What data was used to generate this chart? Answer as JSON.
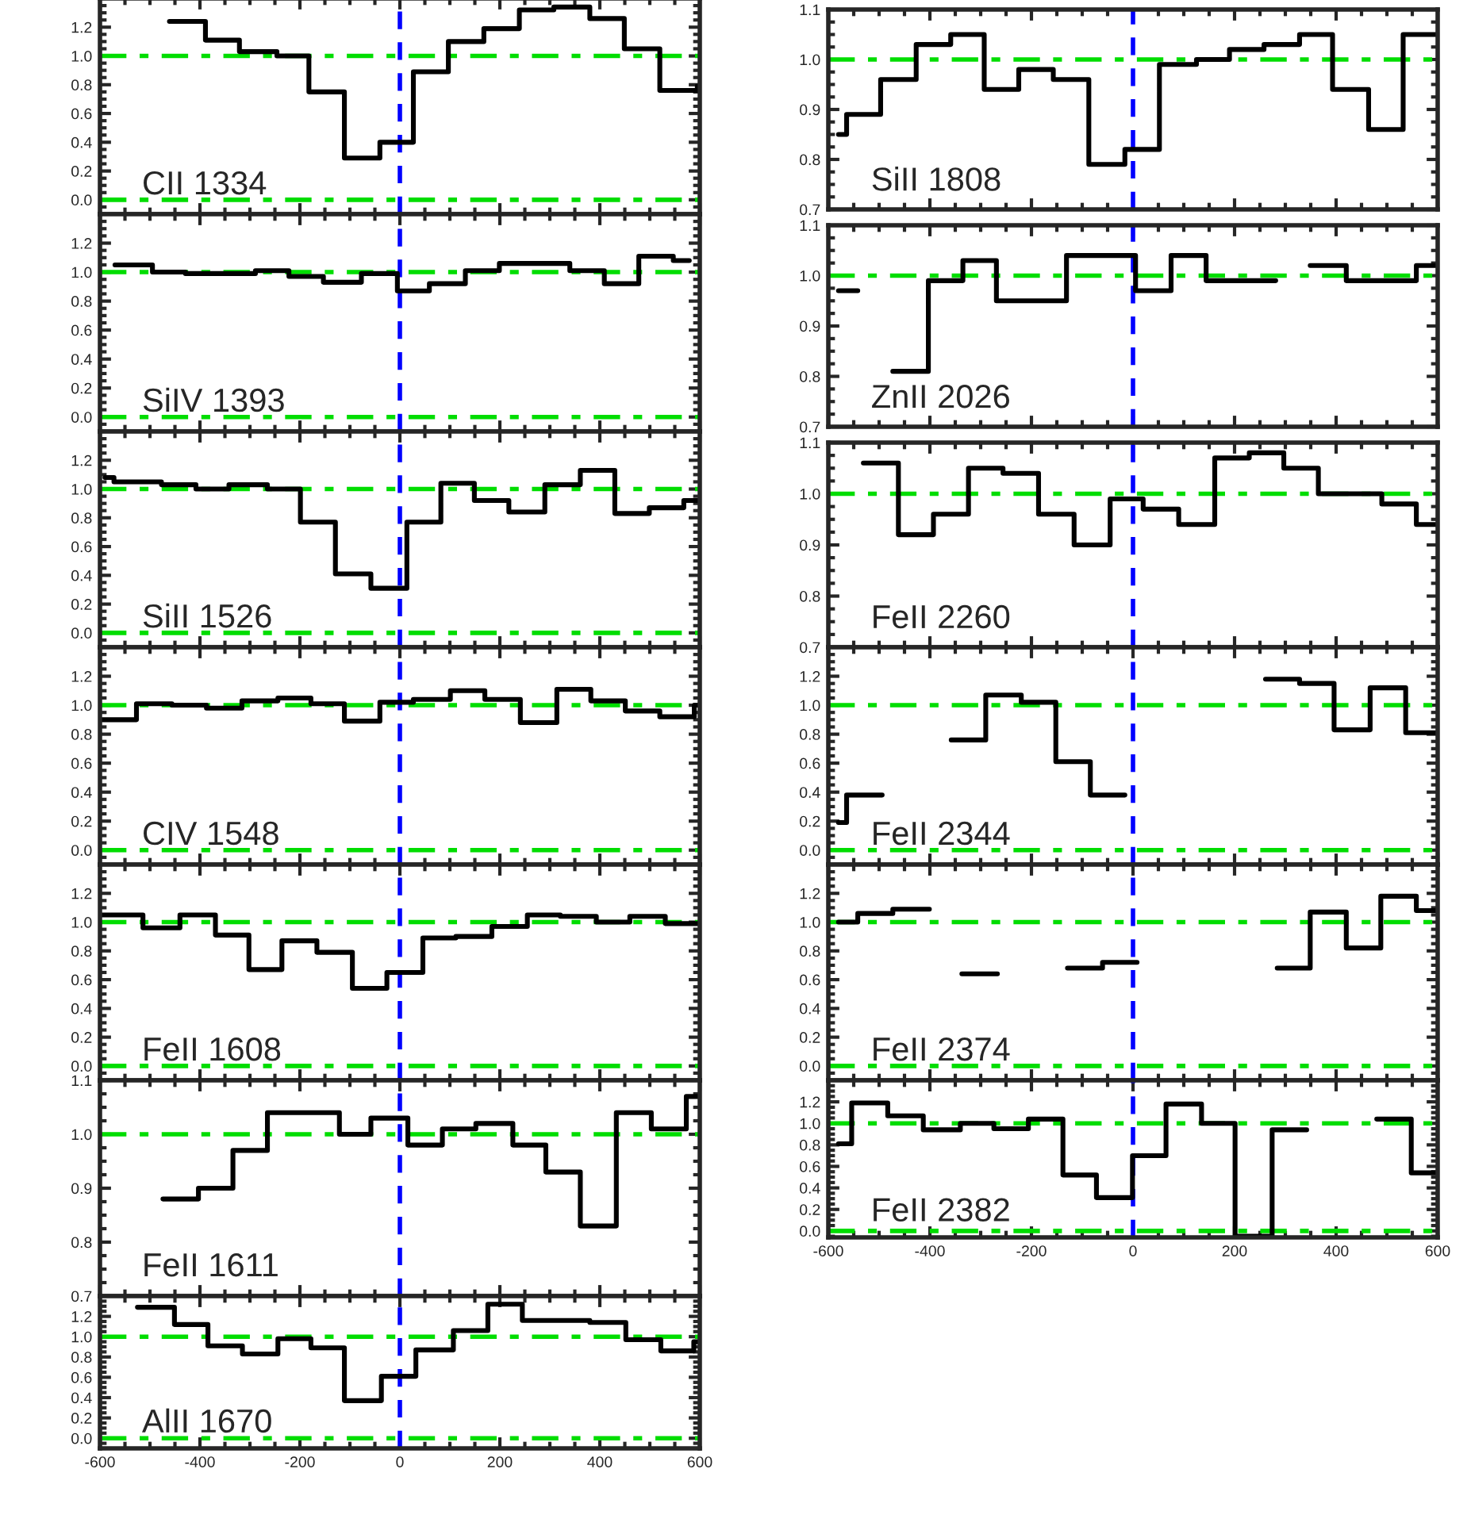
{
  "chart_data": [
    {
      "type": "step",
      "x": [
        -461,
        -389,
        -321,
        -246,
        -182,
        -111,
        -40,
        27,
        97,
        168,
        239,
        308,
        380,
        449,
        520,
        595,
        600
      ],
      "values": [
        1.24,
        1.11,
        1.03,
        1.0,
        0.75,
        0.29,
        0.4,
        0.89,
        1.1,
        1.19,
        1.32,
        1.34,
        1.26,
        1.05,
        0.76,
        0.79,
        0.79
      ],
      "color": "#000000",
      "xlim": [
        -600,
        600
      ],
      "xticks": [
        -600,
        -400,
        -200,
        0,
        200,
        400,
        600
      ],
      "ylim": [
        -0.1,
        1.4
      ],
      "yticks": [
        {
          "value": 0,
          "label": "0.0"
        },
        {
          "value": 0.2,
          "label": "0.2"
        },
        {
          "value": 0.4,
          "label": "0.4"
        },
        {
          "value": 0.6,
          "label": "0.6"
        },
        {
          "value": 0.8,
          "label": "0.8"
        },
        {
          "value": 1,
          "label": "1.0"
        },
        {
          "value": 1.2,
          "label": "1.2"
        }
      ],
      "tick_labels": "y",
      "annotations": [
        "CII 1334"
      ],
      "ref_lines": [
        {
          "axis": "y",
          "value": 0,
          "color": "#00dd00",
          "line_style": "dashdot"
        },
        {
          "axis": "y",
          "value": 1,
          "color": "#00dd00",
          "line_style": "dashdot"
        },
        {
          "axis": "x",
          "value": 0,
          "color": "#0000ff",
          "line_style": "dashed"
        }
      ]
    },
    {
      "type": "step",
      "x": [
        -570,
        -495,
        -429,
        -289,
        -222,
        -153,
        -77,
        -5,
        59,
        131,
        199,
        340,
        409,
        478,
        547,
        579
      ],
      "values": [
        1.05,
        1.0,
        0.99,
        1.01,
        0.97,
        0.93,
        0.99,
        0.87,
        0.92,
        1.01,
        1.06,
        1.01,
        0.92,
        1.11,
        1.08,
        1.08
      ],
      "color": "#000000",
      "xlim": [
        -600,
        600
      ],
      "xticks": [
        -600,
        -400,
        -200,
        0,
        200,
        400,
        600
      ],
      "ylim": [
        -0.1,
        1.4
      ],
      "yticks": [
        {
          "value": 0,
          "label": "0.0"
        },
        {
          "value": 0.2,
          "label": "0.2"
        },
        {
          "value": 0.4,
          "label": "0.4"
        },
        {
          "value": 0.6,
          "label": "0.6"
        },
        {
          "value": 0.8,
          "label": "0.8"
        },
        {
          "value": 1,
          "label": "1.0"
        },
        {
          "value": 1.2,
          "label": "1.2"
        }
      ],
      "tick_labels": "y",
      "annotations": [
        "SiIV 1393"
      ],
      "ref_lines": [
        {
          "axis": "y",
          "value": 0,
          "color": "#00dd00",
          "line_style": "dashdot"
        },
        {
          "axis": "y",
          "value": 1,
          "color": "#00dd00",
          "line_style": "dashdot"
        },
        {
          "axis": "x",
          "value": 0,
          "color": "#0000ff",
          "line_style": "dashed"
        }
      ]
    },
    {
      "type": "step",
      "x": [
        -590,
        -572,
        -477,
        -408,
        -342,
        -265,
        -199,
        -129,
        -58,
        14,
        82,
        149,
        218,
        290,
        361,
        430,
        499,
        568,
        600
      ],
      "values": [
        1.08,
        1.05,
        1.03,
        1.0,
        1.03,
        1.0,
        0.77,
        0.41,
        0.31,
        0.77,
        1.04,
        0.92,
        0.84,
        1.03,
        1.13,
        0.83,
        0.87,
        0.92,
        0.92
      ],
      "color": "#000000",
      "xlim": [
        -600,
        600
      ],
      "xticks": [
        -600,
        -400,
        -200,
        0,
        200,
        400,
        600
      ],
      "ylim": [
        -0.1,
        1.4
      ],
      "yticks": [
        {
          "value": 0,
          "label": "0.0"
        },
        {
          "value": 0.2,
          "label": "0.2"
        },
        {
          "value": 0.4,
          "label": "0.4"
        },
        {
          "value": 0.6,
          "label": "0.6"
        },
        {
          "value": 0.8,
          "label": "0.8"
        },
        {
          "value": 1,
          "label": "1.0"
        },
        {
          "value": 1.2,
          "label": "1.2"
        }
      ],
      "tick_labels": "y",
      "annotations": [
        "SiII 1526"
      ],
      "ref_lines": [
        {
          "axis": "y",
          "value": 0,
          "color": "#00dd00",
          "line_style": "dashdot"
        },
        {
          "axis": "y",
          "value": 1,
          "color": "#00dd00",
          "line_style": "dashdot"
        },
        {
          "axis": "x",
          "value": 0,
          "color": "#0000ff",
          "line_style": "dashed"
        }
      ]
    },
    {
      "type": "step",
      "x": [
        -600,
        -527,
        -456,
        -387,
        -316,
        -244,
        -178,
        -111,
        -40,
        27,
        101,
        170,
        241,
        314,
        382,
        451,
        520,
        589,
        600
      ],
      "values": [
        0.9,
        1.01,
        1.0,
        0.98,
        1.03,
        1.05,
        1.01,
        0.89,
        1.02,
        1.04,
        1.1,
        1.04,
        0.88,
        1.11,
        1.03,
        0.96,
        0.92,
        1.0,
        1.0
      ],
      "color": "#000000",
      "xlim": [
        -600,
        600
      ],
      "xticks": [
        -600,
        -400,
        -200,
        0,
        200,
        400,
        600
      ],
      "ylim": [
        -0.1,
        1.4
      ],
      "yticks": [
        {
          "value": 0,
          "label": "0.0"
        },
        {
          "value": 0.2,
          "label": "0.2"
        },
        {
          "value": 0.4,
          "label": "0.4"
        },
        {
          "value": 0.6,
          "label": "0.6"
        },
        {
          "value": 0.8,
          "label": "0.8"
        },
        {
          "value": 1,
          "label": "1.0"
        },
        {
          "value": 1.2,
          "label": "1.2"
        }
      ],
      "tick_labels": "y",
      "annotations": [
        "CIV 1548"
      ],
      "ref_lines": [
        {
          "axis": "y",
          "value": 0,
          "color": "#00dd00",
          "line_style": "dashdot"
        },
        {
          "axis": "y",
          "value": 1,
          "color": "#00dd00",
          "line_style": "dashdot"
        },
        {
          "axis": "x",
          "value": 0,
          "color": "#0000ff",
          "line_style": "dashed"
        }
      ]
    },
    {
      "type": "step",
      "x": [
        -600,
        -514,
        -440,
        -369,
        -302,
        -236,
        -166,
        -95,
        -26,
        46,
        112,
        184,
        255,
        321,
        393,
        460,
        531,
        600
      ],
      "values": [
        1.05,
        0.96,
        1.05,
        0.91,
        0.67,
        0.87,
        0.79,
        0.54,
        0.65,
        0.89,
        0.9,
        0.97,
        1.05,
        1.04,
        1.0,
        1.04,
        0.99,
        0.99
      ],
      "color": "#000000",
      "xlim": [
        -600,
        600
      ],
      "xticks": [
        -600,
        -400,
        -200,
        0,
        200,
        400,
        600
      ],
      "ylim": [
        -0.1,
        1.4
      ],
      "yticks": [
        {
          "value": 0,
          "label": "0.0"
        },
        {
          "value": 0.2,
          "label": "0.2"
        },
        {
          "value": 0.4,
          "label": "0.4"
        },
        {
          "value": 0.6,
          "label": "0.6"
        },
        {
          "value": 0.8,
          "label": "0.8"
        },
        {
          "value": 1,
          "label": "1.0"
        },
        {
          "value": 1.2,
          "label": "1.2"
        }
      ],
      "tick_labels": "y",
      "annotations": [
        "FeII 1608"
      ],
      "ref_lines": [
        {
          "axis": "y",
          "value": 0,
          "color": "#00dd00",
          "line_style": "dashdot"
        },
        {
          "axis": "y",
          "value": 1,
          "color": "#00dd00",
          "line_style": "dashdot"
        },
        {
          "axis": "x",
          "value": 0,
          "color": "#0000ff",
          "line_style": "dashed"
        }
      ]
    },
    {
      "type": "step",
      "x": [
        -474,
        -403,
        -334,
        -265,
        -196,
        -121,
        -58,
        16,
        85,
        152,
        226,
        292,
        361,
        433,
        503,
        573,
        600
      ],
      "values": [
        0.88,
        0.9,
        0.97,
        1.04,
        1.04,
        1.0,
        1.03,
        0.98,
        1.01,
        1.02,
        0.98,
        0.93,
        0.83,
        1.04,
        1.01,
        1.07,
        1.07
      ],
      "color": "#000000",
      "xlim": [
        -600,
        600
      ],
      "xticks": [
        -600,
        -400,
        -200,
        0,
        200,
        400,
        600
      ],
      "ylim": [
        0.7,
        1.1
      ],
      "yticks": [
        {
          "value": 0.7,
          "label": "0.7"
        },
        {
          "value": 0.8,
          "label": "0.8"
        },
        {
          "value": 0.9,
          "label": "0.9"
        },
        {
          "value": 1,
          "label": "1.0"
        },
        {
          "value": 1.1,
          "label": "1.1"
        }
      ],
      "tick_labels": "y",
      "annotations": [
        "FeII 1611"
      ],
      "ref_lines": [
        {
          "axis": "y",
          "value": 1,
          "color": "#00dd00",
          "line_style": "dashdot"
        },
        {
          "axis": "x",
          "value": 0,
          "color": "#0000ff",
          "line_style": "dashed"
        }
      ]
    },
    {
      "type": "step",
      "x": [
        -525,
        -451,
        -384,
        -315,
        -244,
        -178,
        -111,
        -37,
        32,
        107,
        176,
        245,
        380,
        452,
        522,
        588,
        600
      ],
      "values": [
        1.29,
        1.12,
        0.91,
        0.83,
        0.98,
        0.89,
        0.37,
        0.61,
        0.87,
        1.06,
        1.32,
        1.16,
        1.14,
        0.97,
        0.86,
        0.95,
        0.95
      ],
      "color": "#000000",
      "xlim": [
        -600,
        600
      ],
      "xticks": [
        -600,
        -400,
        -200,
        0,
        200,
        400,
        600
      ],
      "ylim": [
        -0.1,
        1.4
      ],
      "yticks": [
        {
          "value": 0,
          "label": "0.0"
        },
        {
          "value": 0.2,
          "label": "0.2"
        },
        {
          "value": 0.4,
          "label": "0.4"
        },
        {
          "value": 0.6,
          "label": "0.6"
        },
        {
          "value": 0.8,
          "label": "0.8"
        },
        {
          "value": 1,
          "label": "1.0"
        },
        {
          "value": 1.2,
          "label": "1.2"
        }
      ],
      "annotations": [
        "AlII 1670"
      ],
      "ref_lines": [
        {
          "axis": "y",
          "value": 0,
          "color": "#00dd00",
          "line_style": "dashdot"
        },
        {
          "axis": "y",
          "value": 1,
          "color": "#00dd00",
          "line_style": "dashdot"
        },
        {
          "axis": "x",
          "value": 0,
          "color": "#0000ff",
          "line_style": "dashed"
        }
      ]
    },
    {
      "type": "step",
      "x": [
        -580,
        -564,
        -497,
        -427,
        -359,
        -293,
        -225,
        -157,
        -87,
        -16,
        52,
        125,
        190,
        258,
        328,
        393,
        464,
        532,
        600
      ],
      "values": [
        0.85,
        0.89,
        0.96,
        1.03,
        1.05,
        0.94,
        0.98,
        0.96,
        0.79,
        0.82,
        0.99,
        1.0,
        1.02,
        1.03,
        1.05,
        0.94,
        0.86,
        1.05,
        1.05
      ],
      "color": "#000000",
      "xlim": [
        -600,
        600
      ],
      "xticks": [
        -600,
        -400,
        -200,
        0,
        200,
        400,
        600
      ],
      "ylim": [
        0.7,
        1.1
      ],
      "yticks": [
        {
          "value": 0.7,
          "label": "0.7"
        },
        {
          "value": 0.8,
          "label": "0.8"
        },
        {
          "value": 0.9,
          "label": "0.9"
        },
        {
          "value": 1,
          "label": "1.0"
        },
        {
          "value": 1.1,
          "label": "1.1"
        }
      ],
      "tick_labels": "y",
      "annotations": [
        "SiII 1808"
      ],
      "ref_lines": [
        {
          "axis": "y",
          "value": 1,
          "color": "#00dd00",
          "line_style": "dashdot"
        },
        {
          "axis": "x",
          "value": 0,
          "color": "#0000ff",
          "line_style": "dashed"
        }
      ]
    },
    {
      "type": "step",
      "x": [
        -580,
        -542,
        -473,
        -403,
        -335,
        -269,
        -199,
        -131,
        -63,
        5,
        75,
        144,
        214,
        281,
        349,
        420,
        488,
        558,
        600
      ],
      "values": [
        0.97,
        null,
        0.81,
        0.99,
        1.03,
        0.95,
        0.95,
        1.04,
        1.04,
        0.97,
        1.04,
        0.99,
        0.99,
        null,
        1.02,
        0.99,
        0.99,
        1.02,
        1.02
      ],
      "color": "#000000",
      "xlim": [
        -600,
        600
      ],
      "xticks": [
        -600,
        -400,
        -200,
        0,
        200,
        400,
        600
      ],
      "ylim": [
        0.7,
        1.1
      ],
      "yticks": [
        {
          "value": 0.7,
          "label": "0.7"
        },
        {
          "value": 0.8,
          "label": "0.8"
        },
        {
          "value": 0.9,
          "label": "0.9"
        },
        {
          "value": 1,
          "label": "1.0"
        },
        {
          "value": 1.1,
          "label": "1.1"
        }
      ],
      "tick_labels": "y",
      "annotations": [
        "ZnII 2026"
      ],
      "ref_lines": [
        {
          "axis": "y",
          "value": 1,
          "color": "#00dd00",
          "line_style": "dashdot"
        },
        {
          "axis": "x",
          "value": 0,
          "color": "#0000ff",
          "line_style": "dashed"
        }
      ]
    },
    {
      "type": "step",
      "x": [
        -531,
        -462,
        -393,
        -324,
        -256,
        -186,
        -116,
        -45,
        20,
        90,
        161,
        229,
        297,
        365,
        490,
        558,
        600
      ],
      "values": [
        1.06,
        0.92,
        0.96,
        1.05,
        1.04,
        0.96,
        0.9,
        0.99,
        0.97,
        0.94,
        1.07,
        1.08,
        1.05,
        1.0,
        0.98,
        0.94,
        0.94
      ],
      "color": "#000000",
      "xlim": [
        -600,
        600
      ],
      "xticks": [
        -600,
        -400,
        -200,
        0,
        200,
        400,
        600
      ],
      "ylim": [
        0.7,
        1.1
      ],
      "yticks": [
        {
          "value": 0.7,
          "label": "0.7"
        },
        {
          "value": 0.8,
          "label": "0.8"
        },
        {
          "value": 0.9,
          "label": "0.9"
        },
        {
          "value": 1,
          "label": "1.0"
        },
        {
          "value": 1.1,
          "label": "1.1"
        }
      ],
      "tick_labels": "y",
      "annotations": [
        "FeII 2260"
      ],
      "ref_lines": [
        {
          "axis": "y",
          "value": 1,
          "color": "#00dd00",
          "line_style": "dashdot"
        },
        {
          "axis": "x",
          "value": 0,
          "color": "#0000ff",
          "line_style": "dashed"
        }
      ]
    },
    {
      "type": "step",
      "x": [
        -580,
        -564,
        -494,
        -358,
        -290,
        -220,
        -152,
        -84,
        -16,
        125,
        261,
        328,
        396,
        467,
        537,
        600
      ],
      "values": [
        0.19,
        0.38,
        null,
        0.76,
        1.07,
        1.02,
        0.61,
        0.38,
        null,
        null,
        1.18,
        1.15,
        0.83,
        1.12,
        0.81,
        0.81
      ],
      "color": "#000000",
      "xlim": [
        -600,
        600
      ],
      "xticks": [
        -600,
        -400,
        -200,
        0,
        200,
        400,
        600
      ],
      "ylim": [
        -0.1,
        1.4
      ],
      "yticks": [
        {
          "value": 0,
          "label": "0.0"
        },
        {
          "value": 0.2,
          "label": "0.2"
        },
        {
          "value": 0.4,
          "label": "0.4"
        },
        {
          "value": 0.6,
          "label": "0.6"
        },
        {
          "value": 0.8,
          "label": "0.8"
        },
        {
          "value": 1,
          "label": "1.0"
        },
        {
          "value": 1.2,
          "label": "1.2"
        }
      ],
      "tick_labels": "y",
      "annotations": [
        "FeII 2344"
      ],
      "ref_lines": [
        {
          "axis": "y",
          "value": 0,
          "color": "#00dd00",
          "line_style": "dashdot"
        },
        {
          "axis": "y",
          "value": 1,
          "color": "#00dd00",
          "line_style": "dashdot"
        },
        {
          "axis": "x",
          "value": 0,
          "color": "#0000ff",
          "line_style": "dashed"
        }
      ]
    },
    {
      "type": "step",
      "x": [
        -580,
        -542,
        -473,
        -401,
        -337,
        -267,
        -129,
        -60,
        8,
        146,
        284,
        349,
        420,
        488,
        558,
        600
      ],
      "values": [
        1.0,
        1.06,
        1.09,
        null,
        0.64,
        null,
        0.68,
        0.72,
        null,
        null,
        0.68,
        1.07,
        0.82,
        1.18,
        1.08,
        1.08
      ],
      "color": "#000000",
      "xlim": [
        -600,
        600
      ],
      "xticks": [
        -600,
        -400,
        -200,
        0,
        200,
        400,
        600
      ],
      "ylim": [
        -0.1,
        1.4
      ],
      "yticks": [
        {
          "value": 0,
          "label": "0.0"
        },
        {
          "value": 0.2,
          "label": "0.2"
        },
        {
          "value": 0.4,
          "label": "0.4"
        },
        {
          "value": 0.6,
          "label": "0.6"
        },
        {
          "value": 0.8,
          "label": "0.8"
        },
        {
          "value": 1,
          "label": "1.0"
        },
        {
          "value": 1.2,
          "label": "1.2"
        }
      ],
      "tick_labels": "y",
      "annotations": [
        "FeII 2374"
      ],
      "ref_lines": [
        {
          "axis": "y",
          "value": 0,
          "color": "#00dd00",
          "line_style": "dashdot"
        },
        {
          "axis": "y",
          "value": 1,
          "color": "#00dd00",
          "line_style": "dashdot"
        },
        {
          "axis": "x",
          "value": 0,
          "color": "#0000ff",
          "line_style": "dashed"
        }
      ]
    },
    {
      "type": "step",
      "x": [
        -580,
        -554,
        -483,
        -413,
        -340,
        -274,
        -206,
        -138,
        -72,
        -1,
        65,
        135,
        201,
        274,
        342,
        480,
        548,
        600
      ],
      "values": [
        0.81,
        1.19,
        1.07,
        0.94,
        1.0,
        0.95,
        1.04,
        0.52,
        0.31,
        0.7,
        1.18,
        1.0,
        -0.05,
        0.94,
        null,
        1.04,
        0.54,
        0.54
      ],
      "color": "#000000",
      "xlim": [
        -600,
        600
      ],
      "xticks": [
        -600,
        -400,
        -200,
        0,
        200,
        400,
        600
      ],
      "ylim": [
        -0.06,
        1.4
      ],
      "yticks": [
        {
          "value": 0,
          "label": "0.0"
        },
        {
          "value": 0.2,
          "label": "0.2"
        },
        {
          "value": 0.4,
          "label": "0.4"
        },
        {
          "value": 0.6,
          "label": "0.6"
        },
        {
          "value": 0.8,
          "label": "0.8"
        },
        {
          "value": 1,
          "label": "1.0"
        },
        {
          "value": 1.2,
          "label": "1.2"
        }
      ],
      "annotations": [
        "FeII 2382"
      ],
      "ref_lines": [
        {
          "axis": "y",
          "value": 0,
          "color": "#00dd00",
          "line_style": "dashdot"
        },
        {
          "axis": "y",
          "value": 1,
          "color": "#00dd00",
          "line_style": "dashdot"
        },
        {
          "axis": "x",
          "value": 0,
          "color": "#0000ff",
          "line_style": "dashed"
        }
      ]
    }
  ]
}
